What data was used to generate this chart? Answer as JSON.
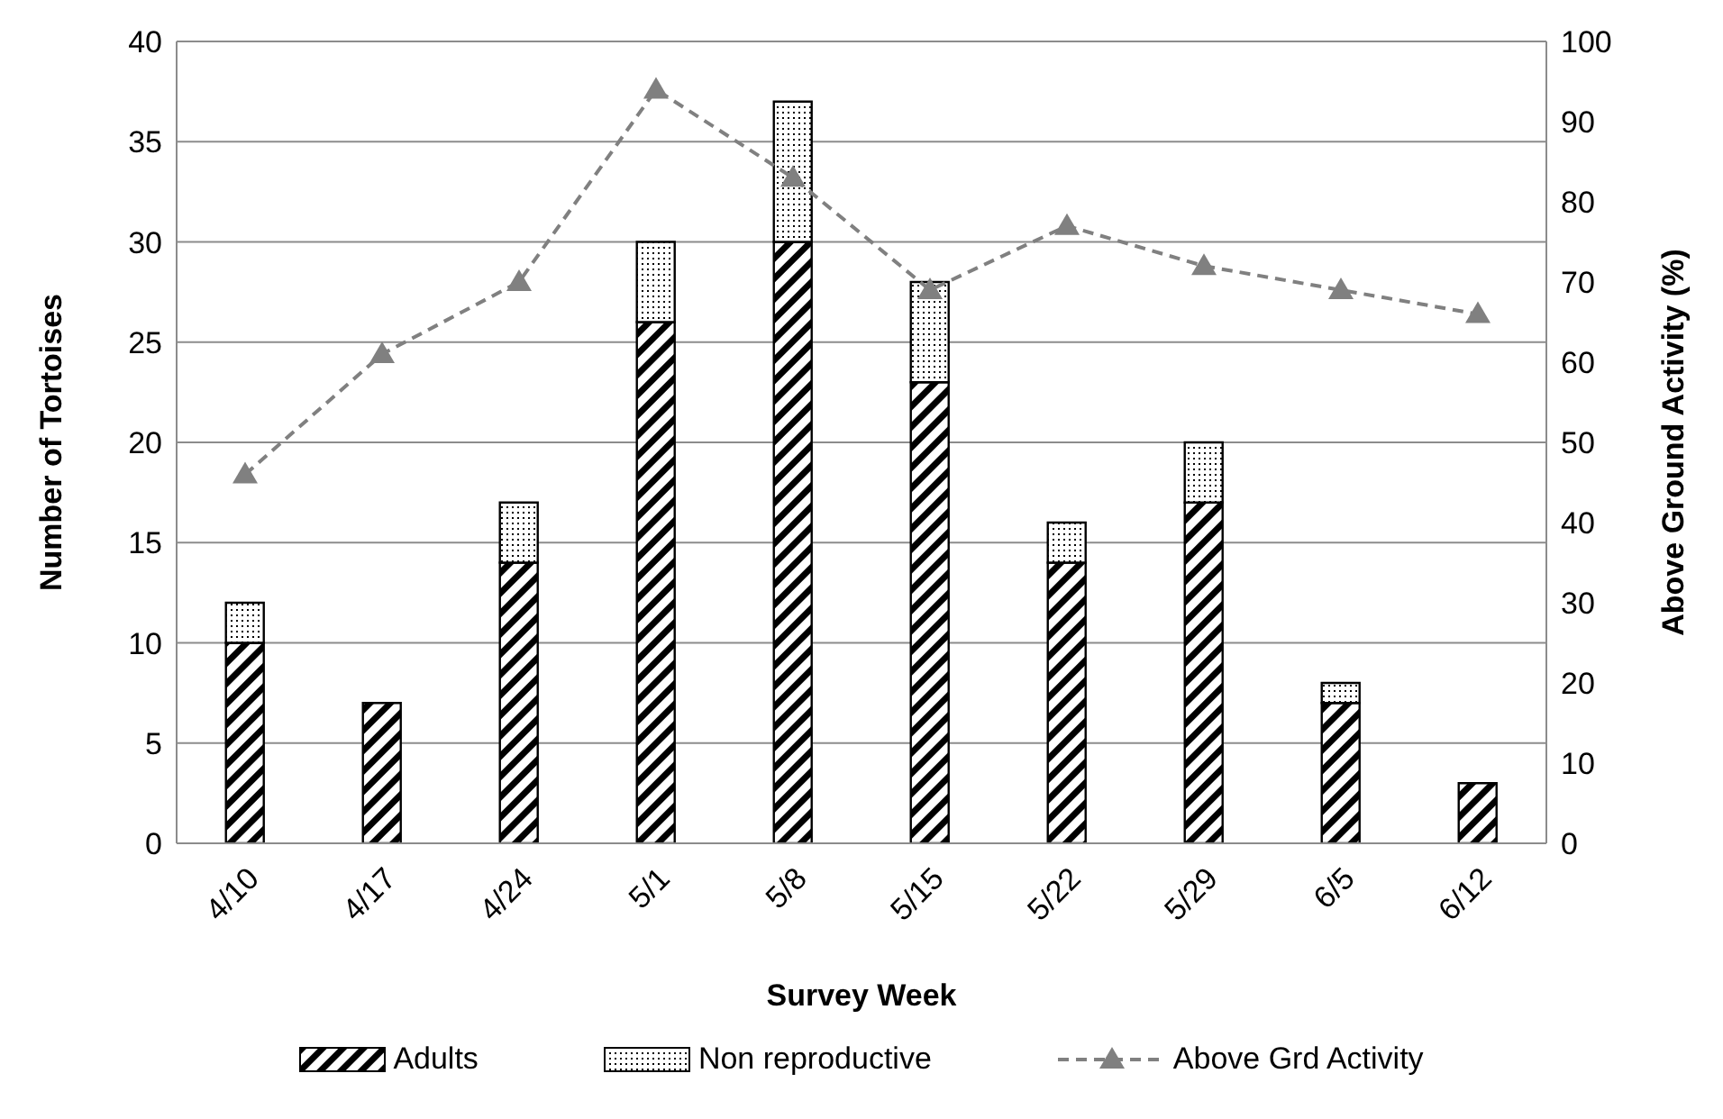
{
  "chart_data": {
    "type": "bar",
    "stacked": true,
    "xlabel": "Survey Week",
    "ylabel": "Number of Tortoises",
    "y2label": "Above Ground Activity (%)",
    "categories": [
      "4/10",
      "4/17",
      "4/24",
      "5/1",
      "5/8",
      "5/15",
      "5/22",
      "5/29",
      "6/5",
      "6/12"
    ],
    "series": [
      {
        "name": "Adults",
        "color": "#000000",
        "values": [
          10,
          7,
          14,
          26,
          30,
          23,
          14,
          17,
          7,
          3
        ]
      },
      {
        "name": "Non reproductive",
        "color": "#000000",
        "values": [
          2,
          0,
          3,
          4,
          7,
          5,
          2,
          3,
          1,
          0
        ]
      },
      {
        "name": "Above Grd Activity",
        "type": "line",
        "axis": "y2",
        "color": "#808080",
        "line_style": "dashed",
        "marker": "triangle",
        "values": [
          46,
          61,
          70,
          94,
          83,
          69,
          77,
          72,
          69,
          66
        ]
      }
    ],
    "ylim": [
      0,
      40
    ],
    "yticks": [
      0,
      5,
      10,
      15,
      20,
      25,
      30,
      35,
      40
    ],
    "y2lim": [
      0,
      100
    ],
    "y2ticks": [
      0,
      10,
      20,
      30,
      40,
      50,
      60,
      70,
      80,
      90,
      100
    ],
    "grid": "y",
    "legend": "bottom"
  }
}
